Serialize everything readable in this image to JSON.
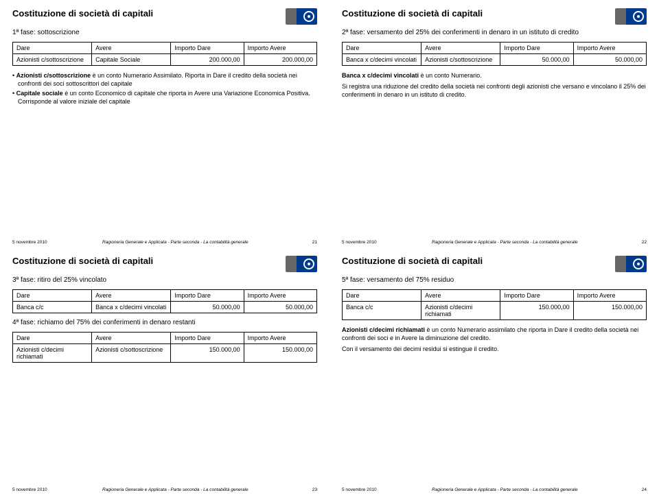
{
  "slides": [
    {
      "title": "Costituzione di società di capitali",
      "subtitle": "1ª fase: sottoscrizione",
      "table": {
        "headers": [
          "Dare",
          "Avere",
          "Importo Dare",
          "Importo Avere"
        ],
        "rows": [
          [
            "Azionisti c/sottoscrizione",
            "Capitale Sociale",
            "200.000,00",
            "200.000,00"
          ]
        ]
      },
      "notes_html": "<div class='bullet'><strong>Azionisti c/sottoscrizione</strong> è un conto Numerario Assimilato. Riporta in Dare il credito della società nei confronti dei soci sottoscrittori del capitale</div><div class='bullet'><strong>Capitale sociale</strong> è un conto Economico di capitale che riporta in Avere una Variazione Economica Positiva. Corrisponde al valore iniziale del capitale</div>",
      "footer_date": "5 novembre 2010",
      "footer_center": "Ragioneria Generale e Applicata - Parte seconda - La contabilità generale",
      "footer_num": "21"
    },
    {
      "title": "Costituzione di società di capitali",
      "subtitle": "2ª fase: versamento del 25% dei conferimenti in denaro in un istituto di credito",
      "table": {
        "headers": [
          "Dare",
          "Avere",
          "Importo Dare",
          "Importo Avere"
        ],
        "rows": [
          [
            "Banca x c/decimi vincolati",
            "Azionisti c/sottoscrizione",
            "50.000,00",
            "50.000,00"
          ]
        ]
      },
      "notes_html": "<p><strong>Banca x c/decimi vincolati</strong> è un conto Numerario.</p><p>Si registra una riduzione del credito della società nei confronti degli azionisti che versano e vincolano il 25% dei conferimenti in denaro in un istituto di credito.</p>",
      "footer_date": "5 novembre 2010",
      "footer_center": "Ragioneria Generale e Applicata - Parte seconda - La contabilità generale",
      "footer_num": "22"
    },
    {
      "title": "Costituzione di società di capitali",
      "subtitle": "3ª fase: ritiro del 25% vincolato",
      "table": {
        "headers": [
          "Dare",
          "Avere",
          "Importo Dare",
          "Importo Avere"
        ],
        "rows": [
          [
            "Banca c/c",
            "Banca x c/decimi vincolati",
            "50.000,00",
            "50.000,00"
          ]
        ]
      },
      "subtitle2": "4ª fase: richiamo del 75% dei conferimenti in denaro restanti",
      "table2": {
        "headers": [
          "Dare",
          "Avere",
          "Importo Dare",
          "Importo Avere"
        ],
        "rows": [
          [
            "Azionisti c/decimi richiamati",
            "Azionisti c/sottoscrizione",
            "150.000,00",
            "150.000,00"
          ]
        ]
      },
      "footer_date": "5 novembre 2010",
      "footer_center": "Ragioneria Generale e Applicata - Parte seconda - La contabilità generale",
      "footer_num": "23"
    },
    {
      "title": "Costituzione di società di capitali",
      "subtitle": "5ª fase: versamento del 75% residuo",
      "table": {
        "headers": [
          "Dare",
          "Avere",
          "Importo Dare",
          "Importo Avere"
        ],
        "rows": [
          [
            "Banca c/c",
            "Azionisti c/decimi richiamati",
            "150.000,00",
            "150.000,00"
          ]
        ]
      },
      "notes_html": "<p><strong>Azionisti c/decimi richiamati</strong> è un conto Numerario assimilato che riporta in Dare il credito della società nei confronti dei soci e in Avere la diminuzione del credito.</p><p>Con il versamento dei decimi residui si estingue il credito.</p>",
      "footer_date": "5 novembre 2010",
      "footer_center": "Ragioneria Generale e Applicata - Parte seconda - La contabilità generale",
      "footer_num": "24"
    }
  ],
  "styling": {
    "background_color": "#ffffff",
    "title_fontsize": 13,
    "subtitle_fontsize": 10,
    "table_fontsize": 9,
    "notes_fontsize": 9,
    "footer_fontsize": 6.5,
    "border_color": "#000000",
    "text_color": "#000000",
    "logo_colors": [
      "#666666",
      "#003a8c"
    ],
    "col_widths": [
      "26%",
      "26%",
      "24%",
      "24%"
    ]
  }
}
